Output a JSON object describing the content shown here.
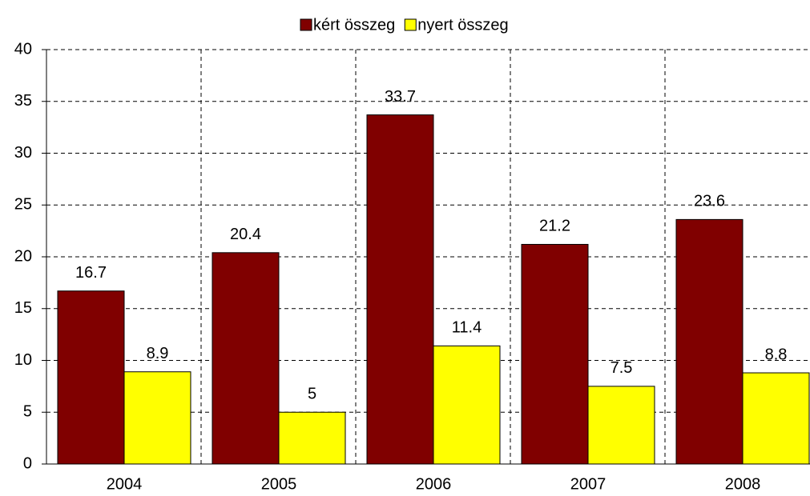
{
  "chart_data": {
    "type": "bar",
    "categories": [
      "2004",
      "2005",
      "2006",
      "2007",
      "2008"
    ],
    "series": [
      {
        "name": "kért összeg",
        "color": "#800000",
        "values": [
          16.7,
          20.4,
          33.7,
          21.2,
          23.6
        ]
      },
      {
        "name": "nyert összeg",
        "color": "#ffff00",
        "values": [
          8.9,
          5,
          11.4,
          7.5,
          8.8
        ]
      }
    ],
    "ylim": [
      0,
      40
    ],
    "yticks": [
      0,
      5,
      10,
      15,
      20,
      25,
      30,
      35,
      40
    ],
    "grid": true,
    "legend": "top"
  }
}
